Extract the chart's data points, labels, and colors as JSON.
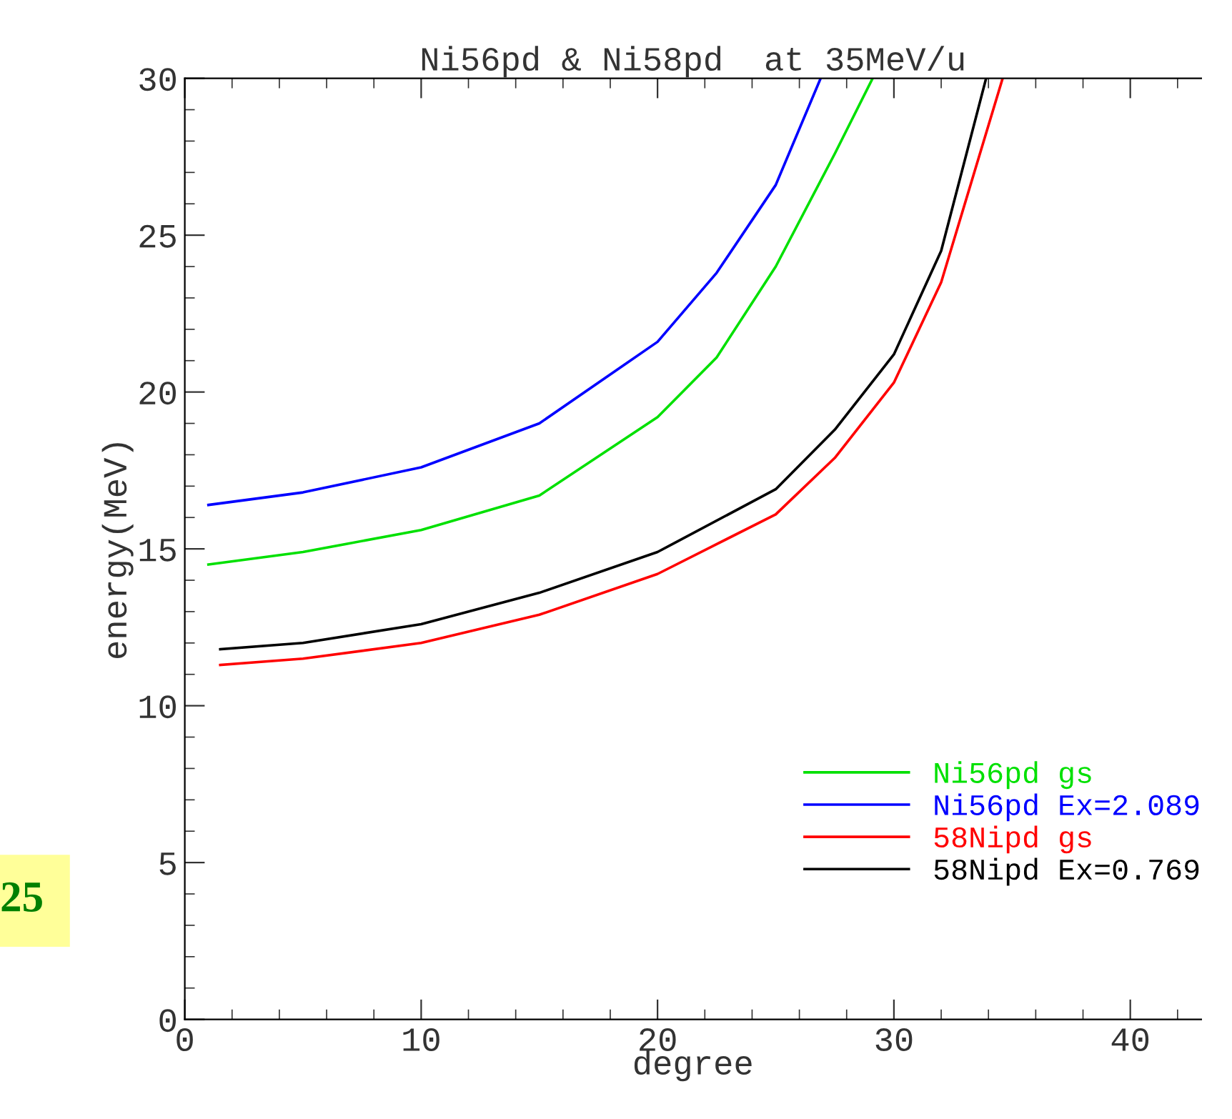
{
  "chart_data": {
    "type": "line",
    "title": "Ni56pd & Ni58pd  at 35MeV/u",
    "xlabel": "degree",
    "ylabel": "energy(MeV)",
    "xlim": [
      0,
      43
    ],
    "xticks": [
      0,
      10,
      20,
      30,
      40
    ],
    "ylim": [
      0,
      30
    ],
    "yticks": [
      0,
      5,
      10,
      15,
      20,
      25,
      30
    ],
    "grid": false,
    "legend": "bottom right",
    "line_style": "solid",
    "marker": "none",
    "annotations": [
      "25"
    ],
    "series": [
      {
        "name": "Ni56pd gs",
        "color": "#00e000",
        "x": [
          1,
          5,
          10,
          15,
          20,
          22.5,
          25,
          27.5,
          29.1
        ],
        "values": [
          14.5,
          14.9,
          15.6,
          16.7,
          19.2,
          21.1,
          24.0,
          27.6,
          30
        ]
      },
      {
        "name": "Ni56pd Ex=2.089",
        "color": "#0000ff",
        "x": [
          1,
          5,
          10,
          15,
          20,
          22.5,
          25,
          26.9
        ],
        "values": [
          16.4,
          16.8,
          17.6,
          19.0,
          21.6,
          23.8,
          26.6,
          30
        ]
      },
      {
        "name": "58Nipd gs",
        "color": "#ff0000",
        "x": [
          1.5,
          5,
          10,
          15,
          20,
          25,
          27.5,
          30,
          32,
          34.6
        ],
        "values": [
          11.3,
          11.5,
          12.0,
          12.9,
          14.2,
          16.1,
          17.9,
          20.3,
          23.5,
          30
        ]
      },
      {
        "name": "58Nipd Ex=0.769",
        "color": "#000000",
        "x": [
          1.5,
          5,
          10,
          15,
          20,
          25,
          27.5,
          30,
          32,
          33.9
        ],
        "values": [
          11.8,
          12.0,
          12.6,
          13.6,
          14.9,
          16.9,
          18.8,
          21.2,
          24.5,
          30
        ]
      }
    ]
  }
}
